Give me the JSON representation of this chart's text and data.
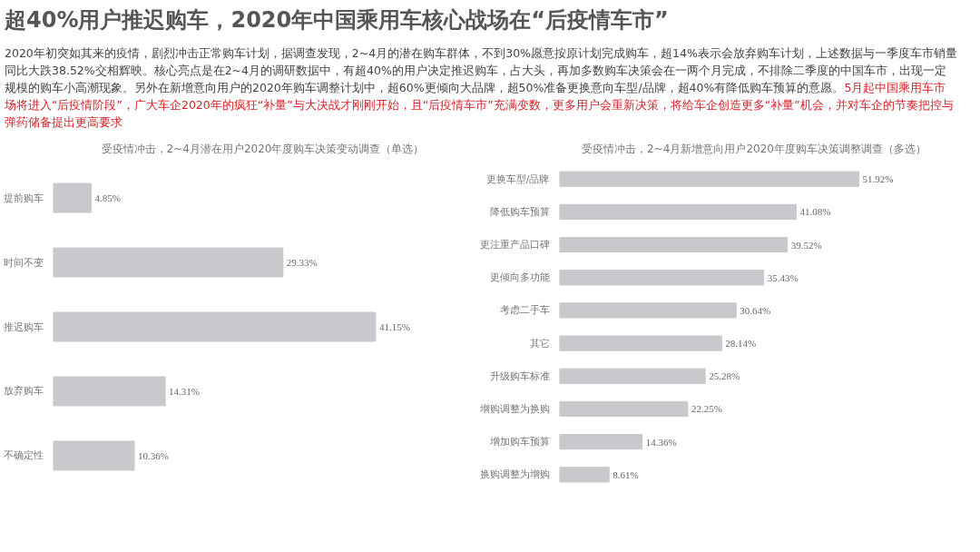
{
  "chart_data": [
    {
      "type": "other",
      "title": "超40%用户推迟购车，2020年中国乘用车核心战场在“后疫情车市”",
      "annotations": [
        "2020年初突如其来的疫情，剧烈冲击正常购车计划，据调查发现，2~4月的潜在购车群体，不到30%愿意按原计划完成购车，超14%表示会放弃购车计划，上述数据与一季度车市销量同比大跌38.52%交相辉映。核心亮点是在2~4月的调研数据中，有超40%的用户决定推迟购车，占大头，再加多数购车决策会在一两个月完成，不排除二季度的中国车市，出现一定规模的购车小高潮现象。另外在新增意向用户的2020年购车调整计划中，超60%更倾向大品牌，超50%准备更换意向车型/品牌，超40%有降低购车预算的意愿。",
        "5月起中国乘用车市场将进入“后疫情阶段”，广大车企2020年的疯狂“补量”与大决战才刚刚开始，且“后疫情车市”充满变数，更多用户会重新决策，将给车企创造更多“补量”机会，并对车企的节奏把控与弹药储备提出更高要求"
      ]
    },
    {
      "type": "bar",
      "orientation": "horizontal",
      "title": "受疫情冲击，2~4月潜在用户2020年度购车决策变动调查（单选）",
      "categories": [
        "提前购车",
        "时间不变",
        "推迟购车",
        "放弃购车",
        "不确定性"
      ],
      "values": [
        4.85,
        29.33,
        41.15,
        14.31,
        10.36
      ],
      "value_labels": [
        "4.85%",
        "29.33%",
        "41.15%",
        "14.31%",
        "10.36%"
      ],
      "color": "#c9c9cd",
      "tick_labels": "y",
      "grid": false
    },
    {
      "type": "bar",
      "orientation": "horizontal",
      "title": "受疫情冲击，2~4月新增意向用户2020年度购车决策调整调查（多选）",
      "categories": [
        "更换车型/品牌",
        "降低购车预算",
        "更注重产品口碑",
        "更倾向多功能",
        "考虑二手车",
        "其它",
        "升级购车标准",
        "增购调整为换购",
        "增加购车预算",
        "换购调整为增购"
      ],
      "values": [
        51.92,
        41.08,
        39.52,
        35.43,
        30.64,
        28.14,
        25.28,
        22.25,
        14.36,
        8.61
      ],
      "value_labels": [
        "51.92%",
        "41.08%",
        "39.52%",
        "35.43%",
        "30.64%",
        "28.14%",
        "25.28%",
        "22.25%",
        "14.36%",
        "8.61%"
      ],
      "color": "#c9c9cd",
      "tick_labels": "y",
      "grid": false
    }
  ]
}
